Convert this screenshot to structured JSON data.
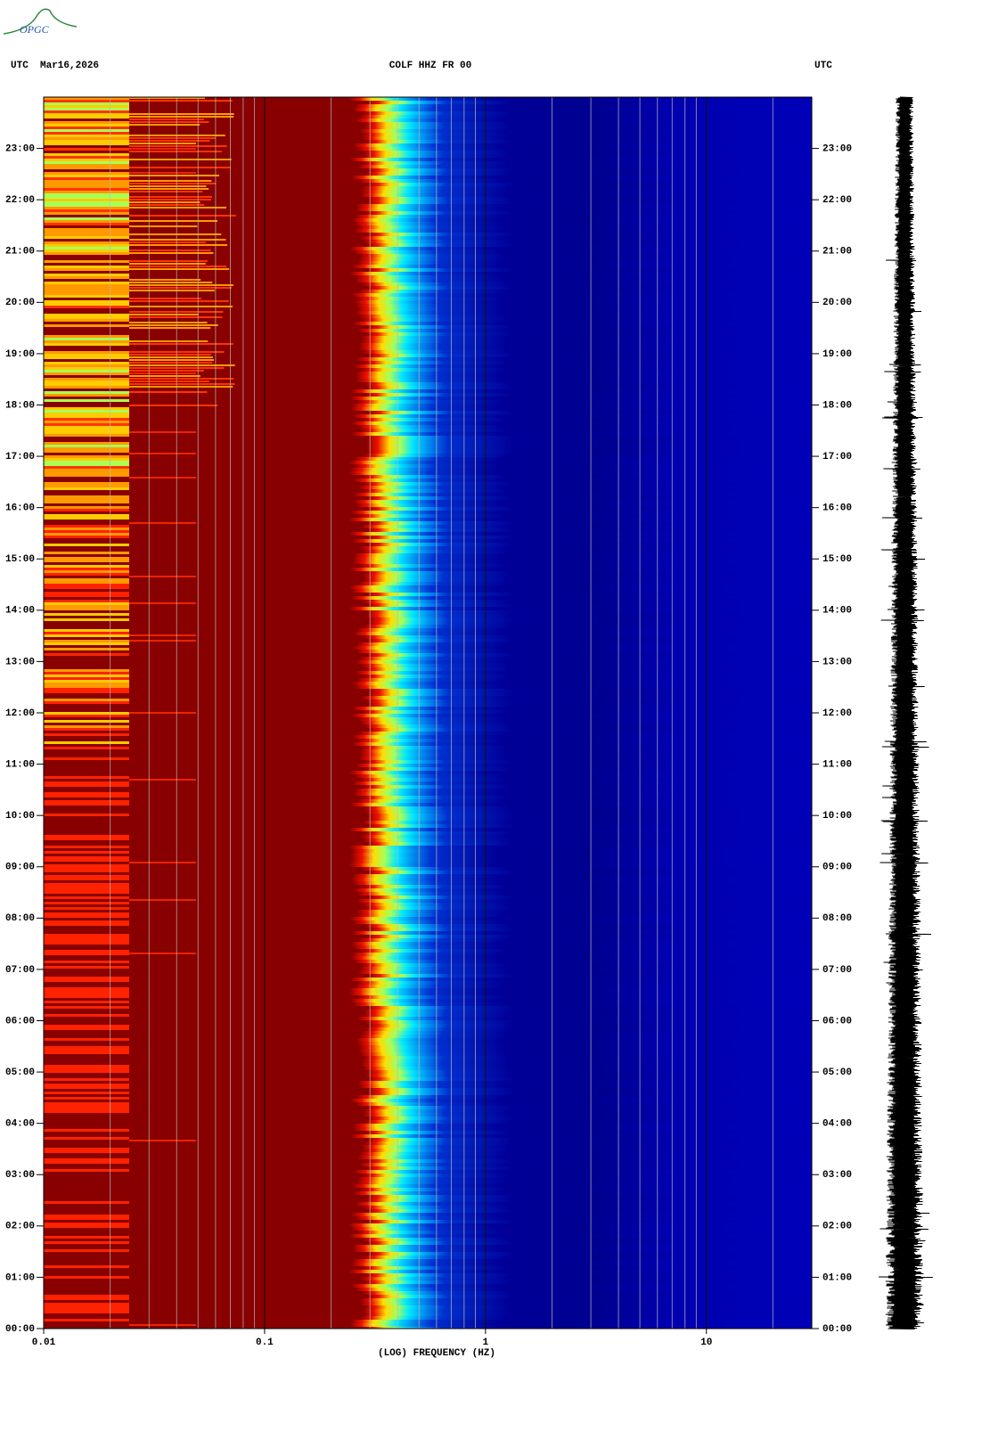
{
  "logo_text": "OPGC",
  "chart_data": {
    "type": "spectrogram",
    "left_label": "UTC  Mar16,2026",
    "title": "COLF HHZ FR 00",
    "right_label": "UTC",
    "xlabel": "(LOG) FREQUENCY (HZ)",
    "xscale": "log",
    "xlim": [
      0.01,
      30
    ],
    "xticks": [
      {
        "value": 0.01,
        "label": "0.01"
      },
      {
        "value": 0.1,
        "label": "0.1"
      },
      1,
      10
    ],
    "xminorticks": [
      0.02,
      0.03,
      0.04,
      0.05,
      0.06,
      0.07,
      0.08,
      0.09,
      0.2,
      0.3,
      0.4,
      0.5,
      0.6,
      0.7,
      0.8,
      0.9,
      2,
      3,
      4,
      5,
      6,
      7,
      8,
      9,
      20
    ],
    "ylim": [
      0,
      24
    ],
    "yticks": [
      {
        "value": 0,
        "label": "00:00"
      },
      {
        "value": 1,
        "label": "01:00"
      },
      {
        "value": 2,
        "label": "02:00"
      },
      {
        "value": 3,
        "label": "03:00"
      },
      {
        "value": 4,
        "label": "04:00"
      },
      {
        "value": 5,
        "label": "05:00"
      },
      {
        "value": 6,
        "label": "06:00"
      },
      {
        "value": 7,
        "label": "07:00"
      },
      {
        "value": 8,
        "label": "08:00"
      },
      {
        "value": 9,
        "label": "09:00"
      },
      {
        "value": 10,
        "label": "10:00"
      },
      {
        "value": 11,
        "label": "11:00"
      },
      {
        "value": 12,
        "label": "12:00"
      },
      {
        "value": 13,
        "label": "13:00"
      },
      {
        "value": 14,
        "label": "14:00"
      },
      {
        "value": 15,
        "label": "15:00"
      },
      {
        "value": 16,
        "label": "16:00"
      },
      {
        "value": 17,
        "label": "17:00"
      },
      {
        "value": 18,
        "label": "18:00"
      },
      {
        "value": 19,
        "label": "19:00"
      },
      {
        "value": 20,
        "label": "20:00"
      },
      {
        "value": 21,
        "label": "21:00"
      },
      {
        "value": 22,
        "label": "22:00"
      },
      {
        "value": 23,
        "label": "23:00"
      }
    ],
    "grid": true
  }
}
